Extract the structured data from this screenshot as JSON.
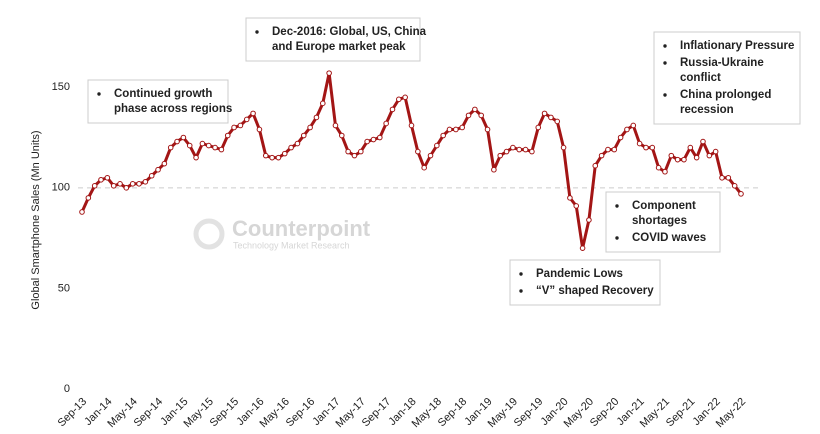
{
  "chart_data": {
    "type": "line",
    "y_label": "Global Smartphone Sales (Mn Units)",
    "watermark": [
      "Counterpoint",
      "Technology Market Research"
    ],
    "categories": [
      "Sep-13",
      null,
      null,
      null,
      "Jan-14",
      null,
      null,
      null,
      "May-14",
      null,
      null,
      null,
      "Sep-14",
      null,
      null,
      null,
      "Jan-15",
      null,
      null,
      null,
      "May-15",
      null,
      null,
      null,
      "Sep-15",
      null,
      null,
      null,
      "Jan-16",
      null,
      null,
      null,
      "May-16",
      null,
      null,
      null,
      "Sep-16",
      null,
      null,
      null,
      "Jan-17",
      null,
      null,
      null,
      "May-17",
      null,
      null,
      null,
      "Sep-17",
      null,
      null,
      null,
      "Jan-18",
      null,
      null,
      null,
      "May-18",
      null,
      null,
      null,
      "Sep-18",
      null,
      null,
      null,
      "Jan-19",
      null,
      null,
      null,
      "May-19",
      null,
      null,
      null,
      "Sep-19",
      null,
      null,
      null,
      "Jan-20",
      null,
      null,
      null,
      "May-20",
      null,
      null,
      null,
      "Sep-20",
      null,
      null,
      null,
      "Jan-21",
      null,
      null,
      null,
      "May-21",
      null,
      null,
      null,
      "Sep-21",
      null,
      null,
      null,
      "Jan-22",
      null,
      null,
      null,
      "May-22"
    ],
    "values": [
      88,
      95,
      101,
      104,
      105,
      101,
      102,
      100,
      102,
      102,
      103,
      106,
      109,
      112,
      120,
      123,
      125,
      121,
      115,
      122,
      121,
      120,
      119,
      126,
      130,
      131,
      134,
      137,
      129,
      116,
      115,
      115,
      117,
      120,
      122,
      126,
      130,
      135,
      142,
      157,
      131,
      126,
      118,
      116,
      118,
      123,
      124,
      125,
      132,
      139,
      144,
      145,
      131,
      118,
      110,
      116,
      121,
      126,
      129,
      129,
      130,
      136,
      139,
      136,
      129,
      109,
      116,
      118,
      120,
      119,
      119,
      118,
      130,
      137,
      135,
      133,
      120,
      95,
      91,
      70,
      84,
      111,
      116,
      119,
      119,
      125,
      129,
      131,
      122,
      120,
      120,
      110,
      108,
      116,
      114,
      114,
      120,
      115,
      123,
      116,
      118,
      105,
      105,
      101,
      97
    ],
    "color": "#a31515",
    "ylim": [
      0,
      170
    ],
    "yticks": [
      0,
      50,
      100,
      150
    ],
    "reference_line": 100,
    "annotations": [
      {
        "items": [
          [
            "Continued growth",
            "phase across regions"
          ]
        ]
      },
      {
        "items": [
          [
            "Dec-2016: Global, US, China",
            "and Europe market peak"
          ]
        ]
      },
      {
        "items": [
          [
            "Inflationary Pressure"
          ],
          [
            "Russia-Ukraine",
            "conflict"
          ],
          [
            "China prolonged",
            "recession"
          ]
        ]
      },
      {
        "items": [
          [
            "Component",
            "shortages"
          ],
          [
            "COVID waves"
          ]
        ]
      },
      {
        "items": [
          [
            "Pandemic Lows"
          ],
          [
            "“V” shaped Recovery"
          ]
        ]
      }
    ]
  }
}
